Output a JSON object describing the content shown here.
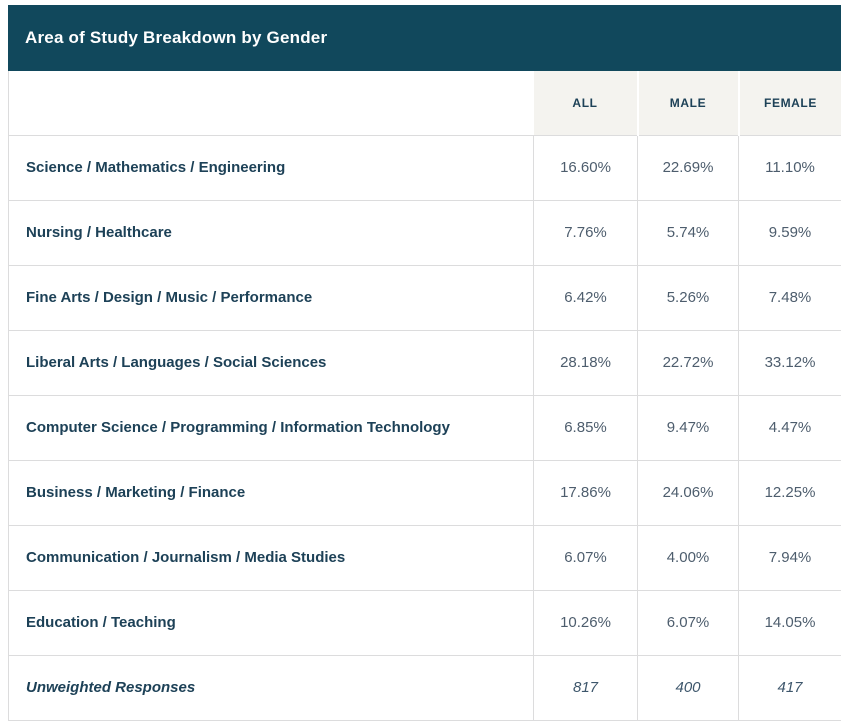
{
  "title": "Area of Study Breakdown by Gender",
  "columns": [
    "ALL",
    "MALE",
    "FEMALE"
  ],
  "rows": [
    {
      "label": "Science / Mathematics / Engineering",
      "all": "16.60%",
      "male": "22.69%",
      "female": "11.10%"
    },
    {
      "label": "Nursing / Healthcare",
      "all": "7.76%",
      "male": "5.74%",
      "female": "9.59%"
    },
    {
      "label": "Fine Arts / Design / Music / Performance",
      "all": "6.42%",
      "male": "5.26%",
      "female": "7.48%"
    },
    {
      "label": "Liberal Arts / Languages / Social Sciences",
      "all": "28.18%",
      "male": "22.72%",
      "female": "33.12%"
    },
    {
      "label": "Computer Science / Programming / Information Technology",
      "all": "6.85%",
      "male": "9.47%",
      "female": "4.47%"
    },
    {
      "label": "Business / Marketing / Finance",
      "all": "17.86%",
      "male": "24.06%",
      "female": "12.25%"
    },
    {
      "label": "Communication / Journalism / Media Studies",
      "all": "6.07%",
      "male": "4.00%",
      "female": "7.94%"
    },
    {
      "label": "Education / Teaching",
      "all": "10.26%",
      "male": "6.07%",
      "female": "14.05%"
    }
  ],
  "footer": {
    "label": "Unweighted Responses",
    "all": "817",
    "male": "400",
    "female": "417"
  },
  "colors": {
    "header_bg": "#11485c",
    "header_text": "#ffffff",
    "column_header_bg": "#f4f3ef",
    "label_text": "#1d4157",
    "value_text": "#4d5d6d",
    "footer_value_text": "#3d566b",
    "border": "#dcdcdd"
  },
  "chart_data": {
    "type": "table",
    "title": "Area of Study Breakdown by Gender",
    "columns": [
      "ALL",
      "MALE",
      "FEMALE"
    ],
    "unit": "percent",
    "rows": [
      {
        "category": "Science / Mathematics / Engineering",
        "all": 16.6,
        "male": 22.69,
        "female": 11.1
      },
      {
        "category": "Nursing / Healthcare",
        "all": 7.76,
        "male": 5.74,
        "female": 9.59
      },
      {
        "category": "Fine Arts / Design / Music / Performance",
        "all": 6.42,
        "male": 5.26,
        "female": 7.48
      },
      {
        "category": "Liberal Arts / Languages / Social Sciences",
        "all": 28.18,
        "male": 22.72,
        "female": 33.12
      },
      {
        "category": "Computer Science / Programming / Information Technology",
        "all": 6.85,
        "male": 9.47,
        "female": 4.47
      },
      {
        "category": "Business / Marketing / Finance",
        "all": 17.86,
        "male": 24.06,
        "female": 12.25
      },
      {
        "category": "Communication / Journalism / Media Studies",
        "all": 6.07,
        "male": 4.0,
        "female": 7.94
      },
      {
        "category": "Education / Teaching",
        "all": 10.26,
        "male": 6.07,
        "female": 14.05
      }
    ],
    "unweighted_responses": {
      "all": 817,
      "male": 400,
      "female": 417
    }
  }
}
